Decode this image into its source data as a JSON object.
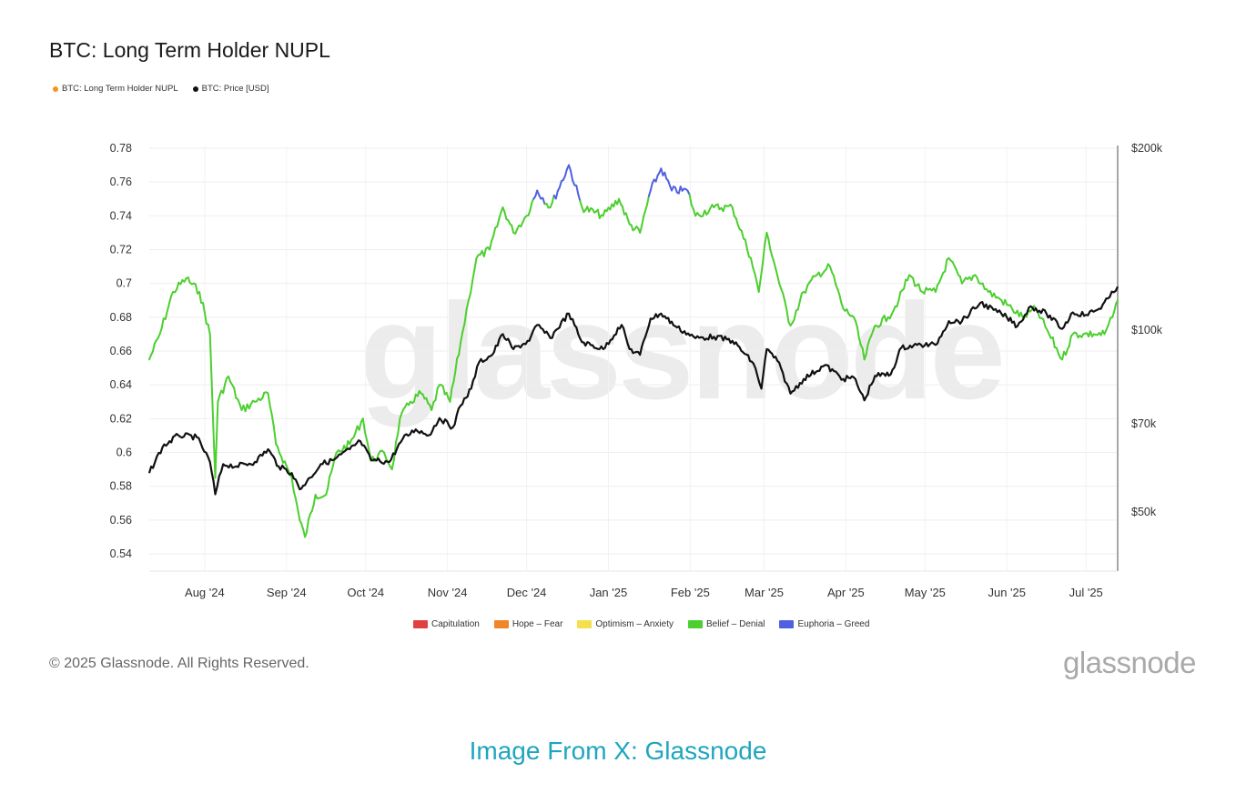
{
  "chart_title": "BTC: Long Term Holder NUPL",
  "top_legend": [
    {
      "label": "BTC: Long Term Holder NUPL",
      "color": "#f7931a"
    },
    {
      "label": "BTC: Price [USD]",
      "color": "#111111"
    }
  ],
  "zone_legend": [
    {
      "label": "Capitulation",
      "color": "#e0403f"
    },
    {
      "label": "Hope – Fear",
      "color": "#f0852a"
    },
    {
      "label": "Optimism – Anxiety",
      "color": "#f3e04b"
    },
    {
      "label": "Belief – Denial",
      "color": "#4ccf2f"
    },
    {
      "label": "Euphoria – Greed",
      "color": "#5061e0"
    }
  ],
  "watermark": "glassnode",
  "copyright": "© 2025 Glassnode. All Rights Reserved.",
  "footer_logo": "glassnode",
  "caption": "Image From X: Glassnode",
  "chart_data": {
    "type": "line",
    "title": "BTC: Long Term Holder NUPL",
    "x_range": [
      "2024-07-11",
      "2025-07-13"
    ],
    "x_ticks": [
      {
        "label": "Aug '24",
        "date": "2024-08-01"
      },
      {
        "label": "Sep '24",
        "date": "2024-09-01"
      },
      {
        "label": "Oct '24",
        "date": "2024-10-01"
      },
      {
        "label": "Nov '24",
        "date": "2024-11-01"
      },
      {
        "label": "Dec '24",
        "date": "2024-12-01"
      },
      {
        "label": "Jan '25",
        "date": "2025-01-01"
      },
      {
        "label": "Feb '25",
        "date": "2025-02-01"
      },
      {
        "label": "Mar '25",
        "date": "2025-03-01"
      },
      {
        "label": "Apr '25",
        "date": "2025-04-01"
      },
      {
        "label": "May '25",
        "date": "2025-05-01"
      },
      {
        "label": "Jun '25",
        "date": "2025-06-01"
      },
      {
        "label": "Jul '25",
        "date": "2025-07-01"
      }
    ],
    "y_left": {
      "ylim": [
        0.53,
        0.78
      ],
      "ticks": [
        0.78,
        0.76,
        0.74,
        0.72,
        0.7,
        0.68,
        0.66,
        0.64,
        0.62,
        0.6,
        0.58,
        0.56,
        0.54
      ],
      "tick_labels": [
        "0.78",
        "0.76",
        "0.74",
        "0.72",
        "0.7",
        "0.68",
        "0.66",
        "0.64",
        "0.62",
        "0.6",
        "0.58",
        "0.56",
        "0.54"
      ]
    },
    "y_right": {
      "scale": "log",
      "ylim": [
        37000,
        200000
      ],
      "ticks": [
        200000,
        100000,
        70000,
        50000
      ],
      "tick_labels": [
        "$200k",
        "$100k",
        "$70k",
        "$50k"
      ]
    },
    "grid": true,
    "legend_position": "top-left",
    "zone_threshold_euphoria": 0.75,
    "series": [
      {
        "name": "BTC: Long Term Holder NUPL",
        "axis": "left",
        "points": [
          [
            "2024-07-11",
            0.655
          ],
          [
            "2024-07-15",
            0.67
          ],
          [
            "2024-07-20",
            0.695
          ],
          [
            "2024-07-25",
            0.703
          ],
          [
            "2024-07-30",
            0.695
          ],
          [
            "2024-08-03",
            0.67
          ],
          [
            "2024-08-05",
            0.585
          ],
          [
            "2024-08-06",
            0.63
          ],
          [
            "2024-08-10",
            0.645
          ],
          [
            "2024-08-15",
            0.625
          ],
          [
            "2024-08-20",
            0.63
          ],
          [
            "2024-08-25",
            0.635
          ],
          [
            "2024-08-28",
            0.605
          ],
          [
            "2024-09-03",
            0.585
          ],
          [
            "2024-09-06",
            0.56
          ],
          [
            "2024-09-08",
            0.55
          ],
          [
            "2024-09-12",
            0.575
          ],
          [
            "2024-09-16",
            0.575
          ],
          [
            "2024-09-20",
            0.6
          ],
          [
            "2024-09-25",
            0.605
          ],
          [
            "2024-09-30",
            0.62
          ],
          [
            "2024-10-03",
            0.595
          ],
          [
            "2024-10-08",
            0.6
          ],
          [
            "2024-10-11",
            0.59
          ],
          [
            "2024-10-14",
            0.62
          ],
          [
            "2024-10-18",
            0.63
          ],
          [
            "2024-10-22",
            0.635
          ],
          [
            "2024-10-26",
            0.625
          ],
          [
            "2024-10-29",
            0.64
          ],
          [
            "2024-11-02",
            0.63
          ],
          [
            "2024-11-06",
            0.665
          ],
          [
            "2024-11-09",
            0.69
          ],
          [
            "2024-11-12",
            0.715
          ],
          [
            "2024-11-17",
            0.72
          ],
          [
            "2024-11-22",
            0.745
          ],
          [
            "2024-11-26",
            0.73
          ],
          [
            "2024-12-01",
            0.74
          ],
          [
            "2024-12-05",
            0.755
          ],
          [
            "2024-12-10",
            0.745
          ],
          [
            "2024-12-17",
            0.77
          ],
          [
            "2024-12-22",
            0.745
          ],
          [
            "2024-12-30",
            0.74
          ],
          [
            "2025-01-05",
            0.75
          ],
          [
            "2025-01-09",
            0.735
          ],
          [
            "2025-01-13",
            0.73
          ],
          [
            "2025-01-17",
            0.755
          ],
          [
            "2025-01-21",
            0.768
          ],
          [
            "2025-01-25",
            0.755
          ],
          [
            "2025-01-31",
            0.755
          ],
          [
            "2025-02-03",
            0.74
          ],
          [
            "2025-02-10",
            0.745
          ],
          [
            "2025-02-17",
            0.745
          ],
          [
            "2025-02-24",
            0.715
          ],
          [
            "2025-02-27",
            0.695
          ],
          [
            "2025-03-02",
            0.73
          ],
          [
            "2025-03-06",
            0.705
          ],
          [
            "2025-03-11",
            0.675
          ],
          [
            "2025-03-16",
            0.695
          ],
          [
            "2025-03-21",
            0.705
          ],
          [
            "2025-03-26",
            0.71
          ],
          [
            "2025-03-31",
            0.685
          ],
          [
            "2025-04-04",
            0.68
          ],
          [
            "2025-04-08",
            0.655
          ],
          [
            "2025-04-12",
            0.675
          ],
          [
            "2025-04-17",
            0.68
          ],
          [
            "2025-04-21",
            0.69
          ],
          [
            "2025-04-25",
            0.705
          ],
          [
            "2025-04-30",
            0.695
          ],
          [
            "2025-05-05",
            0.695
          ],
          [
            "2025-05-10",
            0.715
          ],
          [
            "2025-05-15",
            0.7
          ],
          [
            "2025-05-20",
            0.705
          ],
          [
            "2025-05-25",
            0.695
          ],
          [
            "2025-05-30",
            0.69
          ],
          [
            "2025-06-03",
            0.685
          ],
          [
            "2025-06-07",
            0.68
          ],
          [
            "2025-06-12",
            0.685
          ],
          [
            "2025-06-17",
            0.67
          ],
          [
            "2025-06-22",
            0.655
          ],
          [
            "2025-06-26",
            0.67
          ],
          [
            "2025-06-30",
            0.67
          ],
          [
            "2025-07-04",
            0.67
          ],
          [
            "2025-07-08",
            0.67
          ],
          [
            "2025-07-11",
            0.68
          ],
          [
            "2025-07-13",
            0.69
          ]
        ]
      },
      {
        "name": "BTC: Price [USD]",
        "axis": "right",
        "points": [
          [
            "2024-07-11",
            58000
          ],
          [
            "2024-07-16",
            64000
          ],
          [
            "2024-07-22",
            67000
          ],
          [
            "2024-07-29",
            66500
          ],
          [
            "2024-08-03",
            60500
          ],
          [
            "2024-08-05",
            53500
          ],
          [
            "2024-08-08",
            60000
          ],
          [
            "2024-08-13",
            59500
          ],
          [
            "2024-08-20",
            60500
          ],
          [
            "2024-08-25",
            63500
          ],
          [
            "2024-08-29",
            59500
          ],
          [
            "2024-09-03",
            58000
          ],
          [
            "2024-09-06",
            54500
          ],
          [
            "2024-09-10",
            57000
          ],
          [
            "2024-09-14",
            60000
          ],
          [
            "2024-09-19",
            61000
          ],
          [
            "2024-09-25",
            63500
          ],
          [
            "2024-09-29",
            65500
          ],
          [
            "2024-10-03",
            61000
          ],
          [
            "2024-10-10",
            60500
          ],
          [
            "2024-10-15",
            66000
          ],
          [
            "2024-10-20",
            68500
          ],
          [
            "2024-10-25",
            67000
          ],
          [
            "2024-10-29",
            71500
          ],
          [
            "2024-11-03",
            69000
          ],
          [
            "2024-11-06",
            75000
          ],
          [
            "2024-11-10",
            80000
          ],
          [
            "2024-11-13",
            88500
          ],
          [
            "2024-11-18",
            91000
          ],
          [
            "2024-11-22",
            98500
          ],
          [
            "2024-11-26",
            93000
          ],
          [
            "2024-12-02",
            96000
          ],
          [
            "2024-12-05",
            102000
          ],
          [
            "2024-12-10",
            97000
          ],
          [
            "2024-12-17",
            106500
          ],
          [
            "2024-12-22",
            95500
          ],
          [
            "2024-12-30",
            93000
          ],
          [
            "2025-01-06",
            102000
          ],
          [
            "2025-01-09",
            93000
          ],
          [
            "2025-01-13",
            91000
          ],
          [
            "2025-01-17",
            104500
          ],
          [
            "2025-01-21",
            106500
          ],
          [
            "2025-01-27",
            101000
          ],
          [
            "2025-02-03",
            97000
          ],
          [
            "2025-02-10",
            97500
          ],
          [
            "2025-02-17",
            96000
          ],
          [
            "2025-02-25",
            88000
          ],
          [
            "2025-02-28",
            80000
          ],
          [
            "2025-03-02",
            93000
          ],
          [
            "2025-03-06",
            89000
          ],
          [
            "2025-03-11",
            78500
          ],
          [
            "2025-03-16",
            83000
          ],
          [
            "2025-03-24",
            87500
          ],
          [
            "2025-03-31",
            83000
          ],
          [
            "2025-04-04",
            83500
          ],
          [
            "2025-04-08",
            76500
          ],
          [
            "2025-04-12",
            84000
          ],
          [
            "2025-04-18",
            84500
          ],
          [
            "2025-04-22",
            93500
          ],
          [
            "2025-04-28",
            94500
          ],
          [
            "2025-05-05",
            94500
          ],
          [
            "2025-05-10",
            103500
          ],
          [
            "2025-05-15",
            103500
          ],
          [
            "2025-05-22",
            111000
          ],
          [
            "2025-05-27",
            108000
          ],
          [
            "2025-06-01",
            105000
          ],
          [
            "2025-06-05",
            101500
          ],
          [
            "2025-06-10",
            109500
          ],
          [
            "2025-06-16",
            106500
          ],
          [
            "2025-06-22",
            100500
          ],
          [
            "2025-06-26",
            107000
          ],
          [
            "2025-07-01",
            106000
          ],
          [
            "2025-07-06",
            108500
          ],
          [
            "2025-07-10",
            113500
          ],
          [
            "2025-07-13",
            118000
          ]
        ]
      }
    ]
  }
}
